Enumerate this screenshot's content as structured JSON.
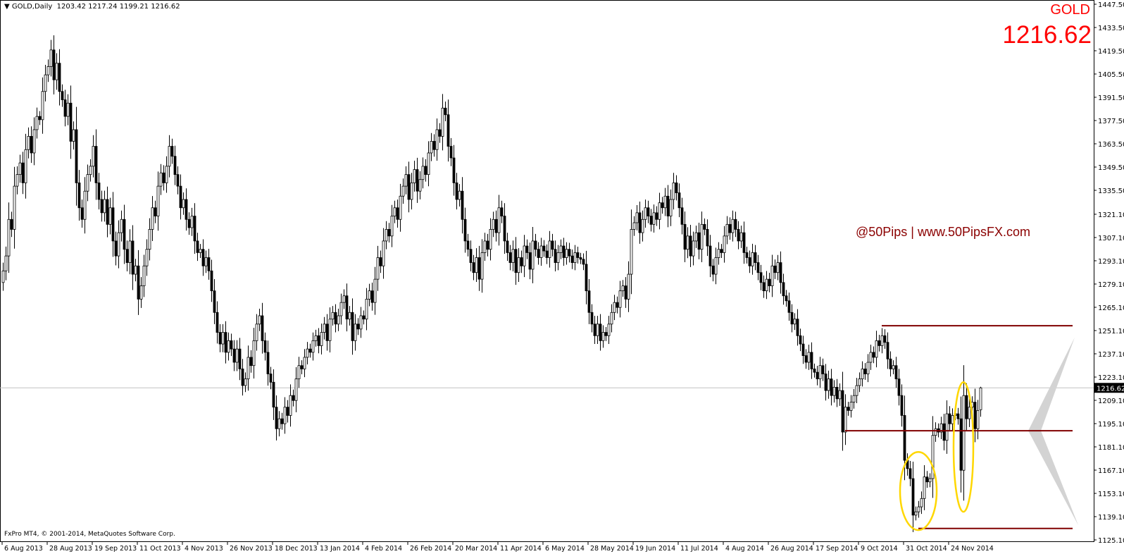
{
  "header": {
    "symbol": "GOLD,Daily",
    "ohlc": "1203.42 1217.24 1199.21 1216.62"
  },
  "corner": {
    "symbol": "GOLD",
    "price": "1216.62"
  },
  "watermark": "@50Pips | www.50PipsFX.com",
  "copyright": "FxPro MT4, © 2001-2014, MetaQuotes Software Corp.",
  "colors": {
    "candle": "#000000",
    "levels": "#800000",
    "highlight": "#ffd700",
    "current_line": "#c0c0c0",
    "projection": "#d3d3d3",
    "brand": "#ff0000"
  },
  "chart_data": {
    "type": "candlestick",
    "symbol": "GOLD",
    "timeframe": "Daily",
    "ylim": [
      1125.1,
      1447.5
    ],
    "y_ticks": [
      "1447.50",
      "1433.50",
      "1419.50",
      "1405.50",
      "1391.50",
      "1377.50",
      "1363.50",
      "1349.50",
      "1335.50",
      "1321.10",
      "1307.10",
      "1293.10",
      "1279.10",
      "1265.10",
      "1251.10",
      "1237.10",
      "1223.10",
      "1209.10",
      "1195.10",
      "1181.10",
      "1167.10",
      "1153.10",
      "1139.10",
      "1125.10"
    ],
    "x_ticks": [
      "6 Aug 2013",
      "28 Aug 2013",
      "19 Sep 2013",
      "11 Oct 2013",
      "4 Nov 2013",
      "26 Nov 2013",
      "18 Dec 2013",
      "13 Jan 2014",
      "4 Feb 2014",
      "26 Feb 2014",
      "20 Mar 2014",
      "11 Apr 2014",
      "6 May 2014",
      "28 May 2014",
      "19 Jun 2014",
      "11 Jul 2014",
      "4 Aug 2014",
      "26 Aug 2014",
      "17 Sep 2014",
      "9 Oct 2014",
      "31 Oct 2014",
      "24 Nov 2014"
    ],
    "x_tick_every_bars": 16,
    "current_price": 1216.62,
    "last_bar": {
      "open": 1203.42,
      "high": 1217.24,
      "low": 1199.21,
      "close": 1216.62
    },
    "first_open": 1280,
    "closes": [
      1287,
      1296,
      1318,
      1312,
      1338,
      1345,
      1352,
      1340,
      1360,
      1368,
      1358,
      1372,
      1380,
      1378,
      1395,
      1405,
      1410,
      1420,
      1402,
      1412,
      1395,
      1390,
      1380,
      1388,
      1365,
      1372,
      1340,
      1325,
      1318,
      1335,
      1345,
      1350,
      1362,
      1340,
      1330,
      1322,
      1330,
      1315,
      1325,
      1305,
      1296,
      1310,
      1318,
      1300,
      1292,
      1305,
      1285,
      1290,
      1270,
      1278,
      1290,
      1300,
      1312,
      1325,
      1320,
      1338,
      1346,
      1340,
      1350,
      1362,
      1356,
      1345,
      1338,
      1325,
      1330,
      1318,
      1313,
      1320,
      1305,
      1298,
      1300,
      1290,
      1295,
      1287,
      1275,
      1262,
      1250,
      1243,
      1250,
      1238,
      1245,
      1240,
      1232,
      1240,
      1228,
      1218,
      1222,
      1235,
      1230,
      1245,
      1255,
      1260,
      1245,
      1238,
      1225,
      1220,
      1205,
      1192,
      1198,
      1195,
      1205,
      1200,
      1212,
      1209,
      1222,
      1230,
      1228,
      1235,
      1240,
      1238,
      1245,
      1248,
      1242,
      1250,
      1255,
      1245,
      1258,
      1262,
      1255,
      1260,
      1268,
      1272,
      1258,
      1262,
      1245,
      1255,
      1252,
      1260,
      1258,
      1270,
      1275,
      1268,
      1282,
      1295,
      1290,
      1305,
      1312,
      1308,
      1320,
      1325,
      1318,
      1332,
      1338,
      1345,
      1330,
      1340,
      1348,
      1335,
      1342,
      1350,
      1345,
      1358,
      1365,
      1360,
      1372,
      1368,
      1385,
      1381,
      1362,
      1355,
      1340,
      1330,
      1335,
      1318,
      1305,
      1300,
      1292,
      1286,
      1295,
      1282,
      1298,
      1305,
      1300,
      1312,
      1318,
      1310,
      1325,
      1320,
      1305,
      1298,
      1292,
      1300,
      1286,
      1295,
      1290,
      1302,
      1298,
      1288,
      1305,
      1300,
      1295,
      1302,
      1299,
      1295,
      1305,
      1300,
      1292,
      1298,
      1302,
      1295,
      1300,
      1296,
      1292,
      1298,
      1295,
      1294,
      1291,
      1275,
      1262,
      1255,
      1248,
      1255,
      1245,
      1250,
      1248,
      1255,
      1262,
      1268,
      1265,
      1275,
      1278,
      1270,
      1285,
      1312,
      1316,
      1322,
      1310,
      1318,
      1325,
      1320,
      1315,
      1322,
      1318,
      1328,
      1325,
      1332,
      1320,
      1330,
      1340,
      1334,
      1325,
      1315,
      1300,
      1308,
      1296,
      1305,
      1310,
      1300,
      1315,
      1312,
      1302,
      1290,
      1285,
      1295,
      1300,
      1298,
      1308,
      1315,
      1310,
      1318,
      1312,
      1305,
      1310,
      1298,
      1295,
      1290,
      1298,
      1292,
      1286,
      1280,
      1275,
      1282,
      1278,
      1290,
      1286,
      1292,
      1280,
      1272,
      1269,
      1262,
      1255,
      1258,
      1248,
      1243,
      1236,
      1232,
      1238,
      1228,
      1226,
      1222,
      1230,
      1225,
      1215,
      1222,
      1212,
      1217,
      1210,
      1215,
      1190,
      1205,
      1203,
      1208,
      1212,
      1218,
      1222,
      1228,
      1225,
      1232,
      1238,
      1235,
      1245,
      1242,
      1248,
      1244,
      1234,
      1228,
      1230,
      1222,
      1212,
      1200,
      1173,
      1168,
      1162,
      1140,
      1142,
      1145,
      1150,
      1163,
      1160,
      1162,
      1188,
      1192,
      1190,
      1195,
      1185,
      1201,
      1195,
      1200,
      1201,
      1198,
      1167,
      1212,
      1198,
      1205,
      1208,
      1192,
      1203,
      1216.62
    ],
    "levels": [
      {
        "price": 1254,
        "from_bar": 312
      },
      {
        "price": 1190.8,
        "from_bar": 299
      },
      {
        "price": 1132,
        "from_bar": 325
      }
    ],
    "highlights": [
      {
        "bars": [
          320,
          330
        ],
        "price": [
          1131,
          1178
        ]
      },
      {
        "bars": [
          339,
          343
        ],
        "price": [
          1142,
          1220
        ]
      }
    ]
  }
}
